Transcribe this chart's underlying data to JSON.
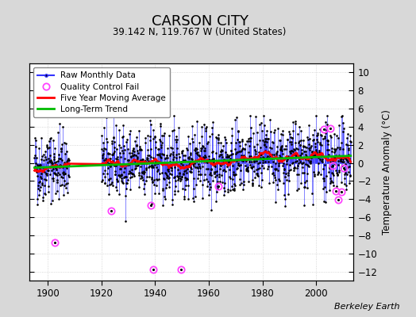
{
  "title": "CARSON CITY",
  "subtitle": "39.142 N, 119.767 W (United States)",
  "ylabel": "Temperature Anomaly (°C)",
  "attribution": "Berkeley Earth",
  "xlim": [
    1893,
    2014
  ],
  "ylim": [
    -13,
    11
  ],
  "yticks": [
    -12,
    -10,
    -8,
    -6,
    -4,
    -2,
    0,
    2,
    4,
    6,
    8,
    10
  ],
  "xticks": [
    1900,
    1920,
    1940,
    1960,
    1980,
    2000
  ],
  "fig_bg_color": "#d8d8d8",
  "plot_bg_color": "#ffffff",
  "grid_color": "#cccccc",
  "raw_line_color": "#3333ff",
  "dot_color": "#000000",
  "qc_color": "#ff44ff",
  "moving_avg_color": "#ff0000",
  "trend_color": "#00bb00",
  "seed": 42,
  "start_year": 1895,
  "end_year": 2012,
  "gap_start": 1908.0,
  "gap_end": 1920.0,
  "qc_fails": [
    {
      "year": 1902.5,
      "value": -8.8
    },
    {
      "year": 1923.5,
      "value": -5.3
    },
    {
      "year": 1938.5,
      "value": -4.7
    },
    {
      "year": 1939.2,
      "value": -11.8
    },
    {
      "year": 1949.7,
      "value": -11.8
    },
    {
      "year": 1963.5,
      "value": -2.6
    },
    {
      "year": 2003.0,
      "value": 3.7
    },
    {
      "year": 2005.3,
      "value": 3.8
    },
    {
      "year": 2006.2,
      "value": -0.3
    },
    {
      "year": 2007.5,
      "value": -3.1
    },
    {
      "year": 2008.3,
      "value": -4.1
    },
    {
      "year": 2009.5,
      "value": -3.2
    },
    {
      "year": 2010.2,
      "value": -0.6
    }
  ]
}
